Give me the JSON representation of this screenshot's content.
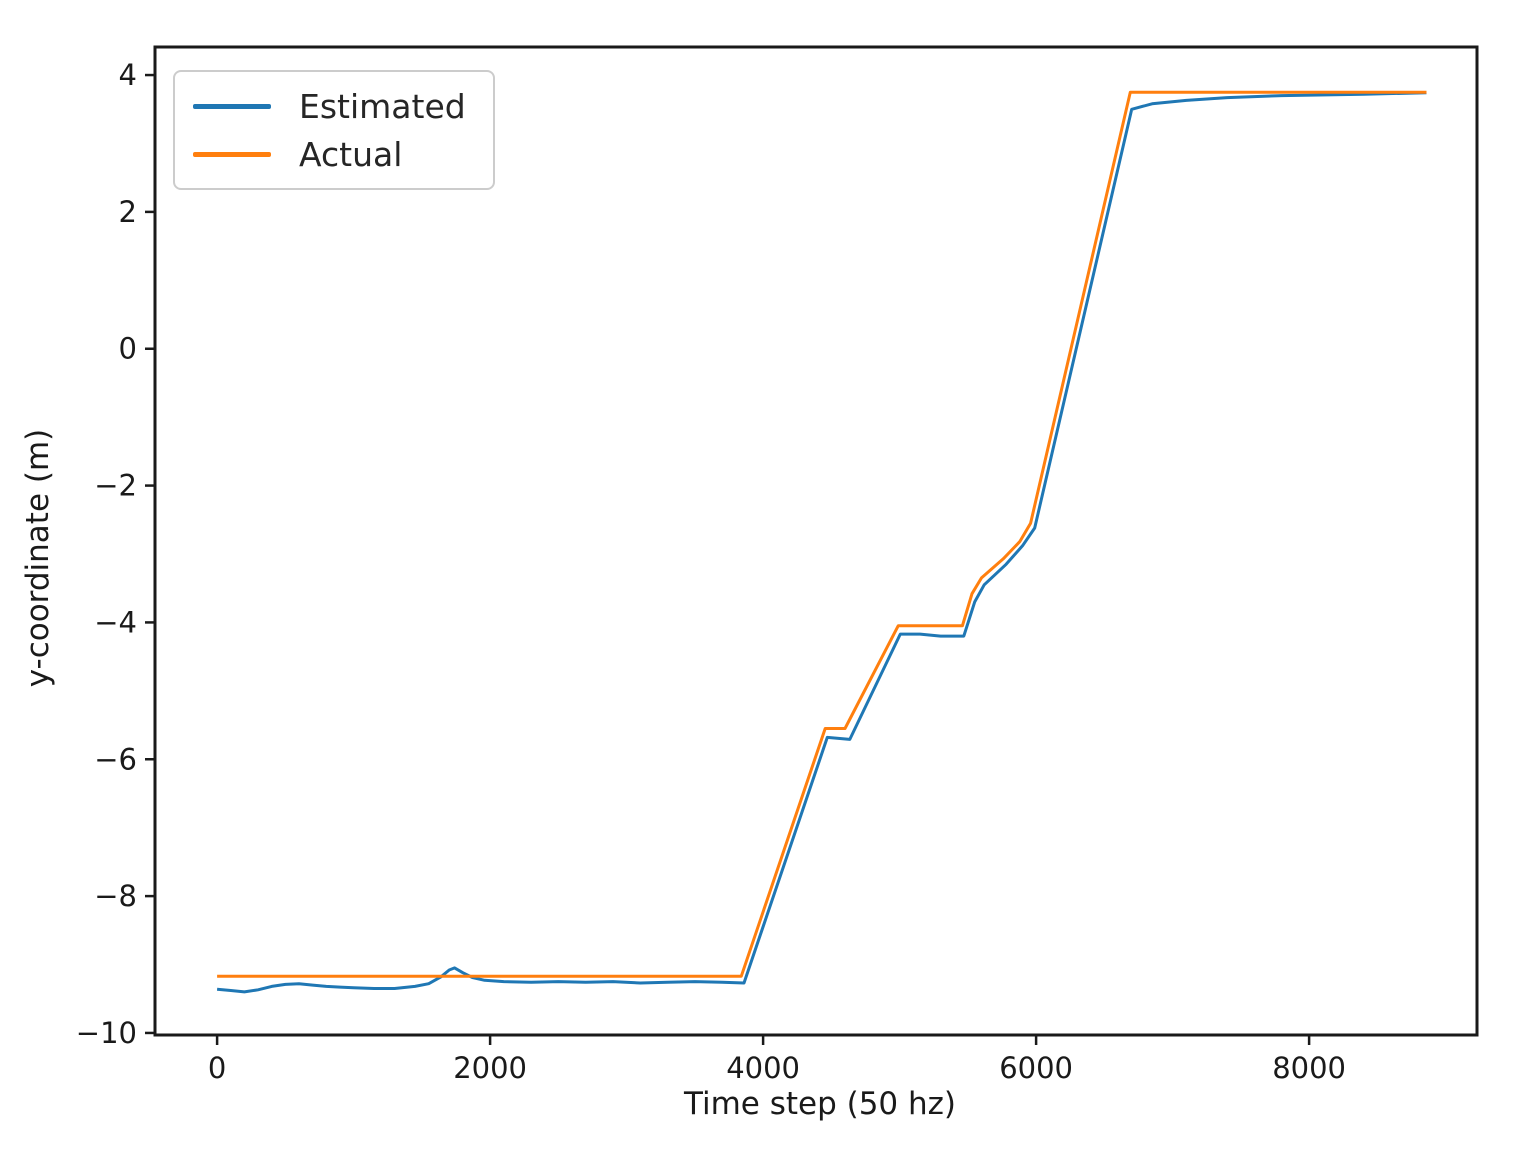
{
  "chart_data": {
    "type": "line",
    "title": "",
    "xlabel": "Time step (50 hz)",
    "ylabel": "y-coordinate (m)",
    "xlim": [
      -455,
      9230
    ],
    "ylim": [
      -10.03,
      4.41
    ],
    "grid": false,
    "legend_position": "upper-left",
    "x_ticks": {
      "values": [
        0,
        2000,
        4000,
        6000,
        8000
      ],
      "labels": [
        "0",
        "2000",
        "4000",
        "6000",
        "8000"
      ]
    },
    "y_ticks": {
      "values": [
        4,
        2,
        0,
        -2,
        -4,
        -6,
        -8,
        -10
      ],
      "labels": [
        "4",
        "2",
        "0",
        "−2",
        "−4",
        "−6",
        "−8",
        "−10"
      ]
    },
    "axis_color": "#1a1a1a",
    "series": [
      {
        "name": "Estimated",
        "color": "#1f77b4",
        "points": [
          [
            0,
            -9.36
          ],
          [
            100,
            -9.38
          ],
          [
            200,
            -9.4
          ],
          [
            300,
            -9.37
          ],
          [
            400,
            -9.32
          ],
          [
            500,
            -9.29
          ],
          [
            600,
            -9.28
          ],
          [
            700,
            -9.3
          ],
          [
            800,
            -9.32
          ],
          [
            900,
            -9.33
          ],
          [
            1000,
            -9.34
          ],
          [
            1150,
            -9.35
          ],
          [
            1300,
            -9.35
          ],
          [
            1450,
            -9.32
          ],
          [
            1550,
            -9.28
          ],
          [
            1640,
            -9.18
          ],
          [
            1700,
            -9.08
          ],
          [
            1740,
            -9.05
          ],
          [
            1800,
            -9.12
          ],
          [
            1870,
            -9.19
          ],
          [
            1960,
            -9.23
          ],
          [
            2100,
            -9.25
          ],
          [
            2300,
            -9.26
          ],
          [
            2500,
            -9.25
          ],
          [
            2700,
            -9.26
          ],
          [
            2900,
            -9.25
          ],
          [
            3100,
            -9.27
          ],
          [
            3300,
            -9.26
          ],
          [
            3500,
            -9.25
          ],
          [
            3700,
            -9.26
          ],
          [
            3860,
            -9.27
          ],
          [
            4470,
            -5.68
          ],
          [
            4635,
            -5.71
          ],
          [
            5005,
            -4.17
          ],
          [
            5150,
            -4.17
          ],
          [
            5300,
            -4.2
          ],
          [
            5470,
            -4.2
          ],
          [
            5550,
            -3.7
          ],
          [
            5620,
            -3.45
          ],
          [
            5780,
            -3.15
          ],
          [
            5900,
            -2.88
          ],
          [
            5990,
            -2.62
          ],
          [
            6700,
            3.5
          ],
          [
            6850,
            3.58
          ],
          [
            7100,
            3.63
          ],
          [
            7400,
            3.67
          ],
          [
            7800,
            3.7
          ],
          [
            8400,
            3.72
          ],
          [
            8860,
            3.74
          ]
        ]
      },
      {
        "name": "Actual",
        "color": "#ff7f0e",
        "points": [
          [
            0,
            -9.17
          ],
          [
            3840,
            -9.17
          ],
          [
            4455,
            -5.55
          ],
          [
            4600,
            -5.55
          ],
          [
            4990,
            -4.05
          ],
          [
            5460,
            -4.05
          ],
          [
            5530,
            -3.58
          ],
          [
            5600,
            -3.35
          ],
          [
            5760,
            -3.07
          ],
          [
            5880,
            -2.82
          ],
          [
            5960,
            -2.55
          ],
          [
            6690,
            3.75
          ],
          [
            8860,
            3.75
          ]
        ]
      }
    ]
  }
}
